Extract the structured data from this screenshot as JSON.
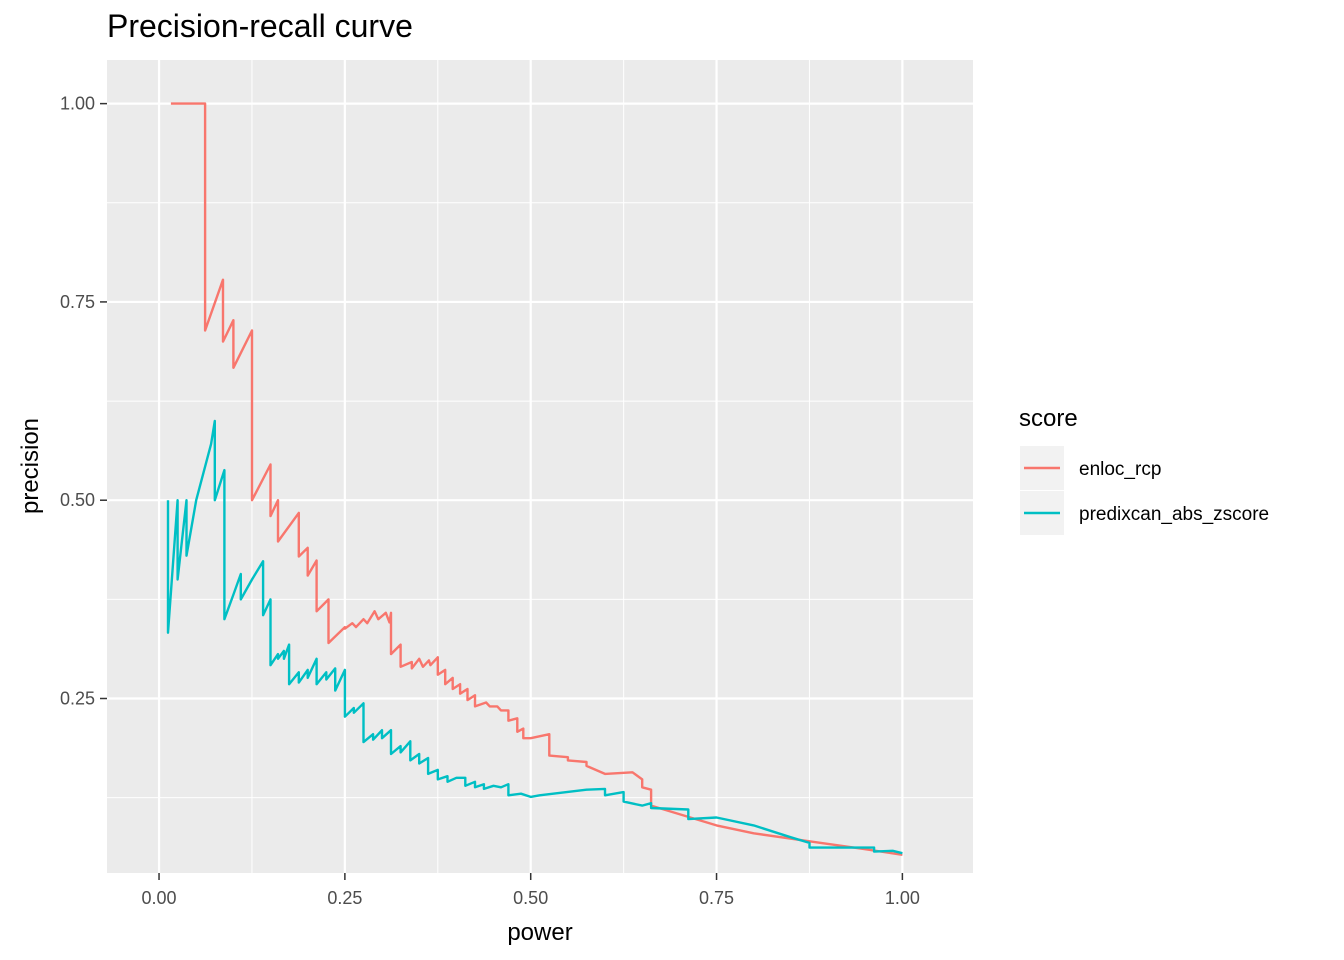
{
  "chart_data": {
    "type": "line",
    "title": "Precision-recall curve",
    "xlabel": "power",
    "ylabel": "precision",
    "xlim": [
      -0.07,
      1.095
    ],
    "ylim": [
      0.03,
      1.055
    ],
    "xticks": [
      0.0,
      0.25,
      0.5,
      0.75,
      1.0
    ],
    "xtick_labels": [
      "0.00",
      "0.25",
      "0.50",
      "0.75",
      "1.00"
    ],
    "yticks": [
      0.25,
      0.5,
      0.75,
      1.0
    ],
    "ytick_labels": [
      "0.25",
      "0.50",
      "0.75",
      "1.00"
    ],
    "grid": true,
    "legend": {
      "title": "score",
      "placement": "right"
    },
    "series": [
      {
        "name": "enloc_rcp",
        "color": "#F8766D",
        "points": [
          [
            0.016,
            1.0
          ],
          [
            0.062,
            1.0
          ],
          [
            0.062,
            0.714
          ],
          [
            0.086,
            0.778
          ],
          [
            0.086,
            0.7
          ],
          [
            0.1,
            0.727
          ],
          [
            0.1,
            0.667
          ],
          [
            0.125,
            0.714
          ],
          [
            0.125,
            0.5
          ],
          [
            0.15,
            0.545
          ],
          [
            0.15,
            0.48
          ],
          [
            0.16,
            0.5
          ],
          [
            0.16,
            0.448
          ],
          [
            0.188,
            0.484
          ],
          [
            0.188,
            0.429
          ],
          [
            0.2,
            0.44
          ],
          [
            0.2,
            0.405
          ],
          [
            0.212,
            0.424
          ],
          [
            0.212,
            0.36
          ],
          [
            0.228,
            0.375
          ],
          [
            0.228,
            0.32
          ],
          [
            0.25,
            0.34
          ],
          [
            0.25,
            0.338
          ],
          [
            0.26,
            0.345
          ],
          [
            0.265,
            0.34
          ],
          [
            0.275,
            0.35
          ],
          [
            0.28,
            0.345
          ],
          [
            0.29,
            0.36
          ],
          [
            0.295,
            0.35
          ],
          [
            0.305,
            0.358
          ],
          [
            0.31,
            0.346
          ],
          [
            0.312,
            0.358
          ],
          [
            0.312,
            0.306
          ],
          [
            0.325,
            0.318
          ],
          [
            0.325,
            0.29
          ],
          [
            0.34,
            0.296
          ],
          [
            0.34,
            0.288
          ],
          [
            0.35,
            0.3
          ],
          [
            0.355,
            0.29
          ],
          [
            0.363,
            0.298
          ],
          [
            0.365,
            0.292
          ],
          [
            0.375,
            0.302
          ],
          [
            0.375,
            0.28
          ],
          [
            0.385,
            0.286
          ],
          [
            0.385,
            0.268
          ],
          [
            0.395,
            0.276
          ],
          [
            0.395,
            0.262
          ],
          [
            0.405,
            0.268
          ],
          [
            0.405,
            0.256
          ],
          [
            0.415,
            0.262
          ],
          [
            0.415,
            0.248
          ],
          [
            0.425,
            0.254
          ],
          [
            0.425,
            0.24
          ],
          [
            0.44,
            0.245
          ],
          [
            0.445,
            0.24
          ],
          [
            0.455,
            0.24
          ],
          [
            0.46,
            0.235
          ],
          [
            0.47,
            0.235
          ],
          [
            0.47,
            0.222
          ],
          [
            0.482,
            0.225
          ],
          [
            0.482,
            0.208
          ],
          [
            0.49,
            0.212
          ],
          [
            0.49,
            0.2
          ],
          [
            0.5,
            0.2
          ],
          [
            0.5,
            0.2
          ],
          [
            0.525,
            0.205
          ],
          [
            0.525,
            0.178
          ],
          [
            0.55,
            0.176
          ],
          [
            0.55,
            0.172
          ],
          [
            0.575,
            0.17
          ],
          [
            0.575,
            0.165
          ],
          [
            0.6,
            0.155
          ],
          [
            0.637,
            0.157
          ],
          [
            0.65,
            0.148
          ],
          [
            0.65,
            0.138
          ],
          [
            0.662,
            0.135
          ],
          [
            0.662,
            0.115
          ],
          [
            0.75,
            0.09
          ],
          [
            0.8,
            0.08
          ],
          [
            0.875,
            0.07
          ],
          [
            0.95,
            0.06
          ],
          [
            1.0,
            0.053
          ]
        ]
      },
      {
        "name": "predixcan_abs_zscore",
        "color": "#00BFC4",
        "points": [
          [
            0.012,
            0.5
          ],
          [
            0.012,
            0.333
          ],
          [
            0.025,
            0.5
          ],
          [
            0.025,
            0.4
          ],
          [
            0.037,
            0.5
          ],
          [
            0.037,
            0.43
          ],
          [
            0.05,
            0.5
          ],
          [
            0.07,
            0.571
          ],
          [
            0.075,
            0.6
          ],
          [
            0.075,
            0.5
          ],
          [
            0.088,
            0.538
          ],
          [
            0.088,
            0.35
          ],
          [
            0.1,
            0.381
          ],
          [
            0.11,
            0.407
          ],
          [
            0.11,
            0.375
          ],
          [
            0.125,
            0.4
          ],
          [
            0.14,
            0.423
          ],
          [
            0.14,
            0.355
          ],
          [
            0.15,
            0.375
          ],
          [
            0.15,
            0.292
          ],
          [
            0.16,
            0.306
          ],
          [
            0.16,
            0.3
          ],
          [
            0.168,
            0.31
          ],
          [
            0.168,
            0.3
          ],
          [
            0.175,
            0.318
          ],
          [
            0.175,
            0.268
          ],
          [
            0.188,
            0.283
          ],
          [
            0.188,
            0.27
          ],
          [
            0.2,
            0.286
          ],
          [
            0.2,
            0.276
          ],
          [
            0.212,
            0.3
          ],
          [
            0.212,
            0.268
          ],
          [
            0.225,
            0.283
          ],
          [
            0.225,
            0.274
          ],
          [
            0.237,
            0.288
          ],
          [
            0.237,
            0.26
          ],
          [
            0.25,
            0.286
          ],
          [
            0.25,
            0.227
          ],
          [
            0.262,
            0.238
          ],
          [
            0.262,
            0.232
          ],
          [
            0.275,
            0.244
          ],
          [
            0.275,
            0.195
          ],
          [
            0.288,
            0.205
          ],
          [
            0.288,
            0.198
          ],
          [
            0.3,
            0.21
          ],
          [
            0.3,
            0.2
          ],
          [
            0.312,
            0.21
          ],
          [
            0.312,
            0.18
          ],
          [
            0.325,
            0.19
          ],
          [
            0.325,
            0.182
          ],
          [
            0.338,
            0.196
          ],
          [
            0.338,
            0.172
          ],
          [
            0.35,
            0.18
          ],
          [
            0.35,
            0.168
          ],
          [
            0.362,
            0.175
          ],
          [
            0.362,
            0.155
          ],
          [
            0.375,
            0.16
          ],
          [
            0.375,
            0.148
          ],
          [
            0.388,
            0.152
          ],
          [
            0.388,
            0.145
          ],
          [
            0.4,
            0.15
          ],
          [
            0.412,
            0.15
          ],
          [
            0.412,
            0.14
          ],
          [
            0.425,
            0.145
          ],
          [
            0.425,
            0.138
          ],
          [
            0.437,
            0.142
          ],
          [
            0.437,
            0.136
          ],
          [
            0.45,
            0.14
          ],
          [
            0.46,
            0.138
          ],
          [
            0.47,
            0.142
          ],
          [
            0.47,
            0.128
          ],
          [
            0.487,
            0.13
          ],
          [
            0.5,
            0.126
          ],
          [
            0.512,
            0.128
          ],
          [
            0.575,
            0.135
          ],
          [
            0.6,
            0.136
          ],
          [
            0.6,
            0.128
          ],
          [
            0.625,
            0.132
          ],
          [
            0.625,
            0.12
          ],
          [
            0.65,
            0.115
          ],
          [
            0.662,
            0.118
          ],
          [
            0.662,
            0.112
          ],
          [
            0.712,
            0.11
          ],
          [
            0.712,
            0.098
          ],
          [
            0.75,
            0.1
          ],
          [
            0.8,
            0.09
          ],
          [
            0.85,
            0.075
          ],
          [
            0.875,
            0.068
          ],
          [
            0.875,
            0.062
          ],
          [
            0.962,
            0.062
          ],
          [
            0.962,
            0.057
          ],
          [
            0.987,
            0.058
          ],
          [
            1.0,
            0.055
          ]
        ]
      }
    ]
  }
}
